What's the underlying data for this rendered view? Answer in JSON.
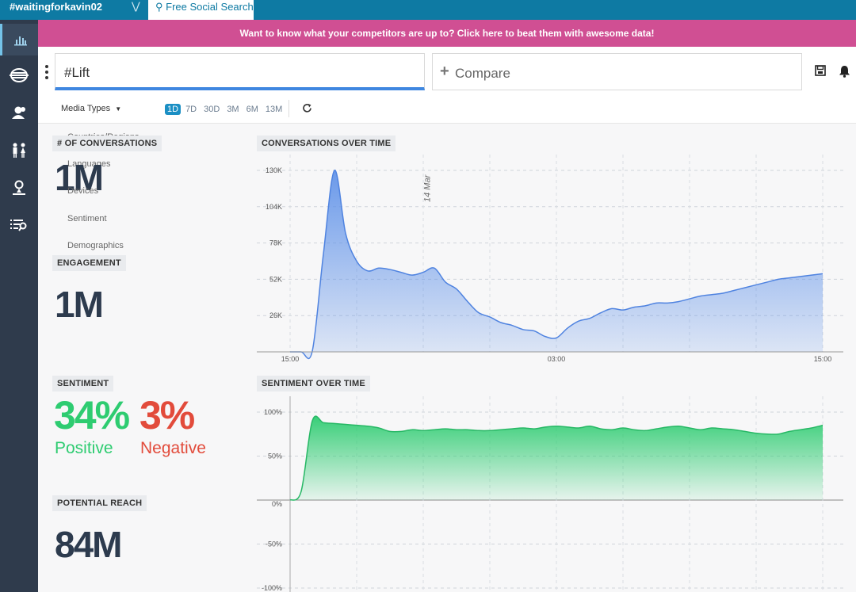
{
  "topbar": {
    "workspace": "#waitingforkavin02",
    "search_tab": "Free Social Search"
  },
  "banner": {
    "text": "Want to know what your competitors are up to? Click here to beat them with awesome data!"
  },
  "query": {
    "value": "#Lift",
    "compare_label": "Compare"
  },
  "filters": {
    "media_types": "Media Types",
    "ranges": [
      "1D",
      "7D",
      "30D",
      "3M",
      "6M",
      "13M"
    ],
    "active_range": "1D"
  },
  "menu": [
    "Countries/Regions",
    "Languages",
    "Devices",
    "Sentiment",
    "Demographics"
  ],
  "metrics": {
    "conversations_label": "# OF CONVERSATIONS",
    "conversations_value": "1M",
    "engagement_label": "ENGAGEMENT",
    "engagement_value": "1M",
    "sentiment_label": "SENTIMENT",
    "positive_value": "34%",
    "positive_label": "Positive",
    "negative_value": "3%",
    "negative_label": "Negative",
    "reach_label": "POTENTIAL REACH",
    "reach_value": "84M"
  },
  "colors": {
    "topbar": "#0e7aa3",
    "banner": "#d04f93",
    "positive": "#2ecc71",
    "negative": "#e24b3b",
    "conversations": "#5b8fe8"
  },
  "chart_data": [
    {
      "type": "area",
      "title": "CONVERSATIONS OVER TIME",
      "x_ticks": [
        "15:00",
        "03:00",
        "15:00"
      ],
      "y_ticks": [
        "26K",
        "52K",
        "78K",
        "104K",
        "130K"
      ],
      "annotation": "14 Mar",
      "ylim": [
        0,
        130000
      ],
      "x": [
        0,
        0.5,
        1,
        1.5,
        2,
        2.5,
        3,
        3.5,
        4,
        4.5,
        5,
        5.5,
        6,
        6.5,
        7,
        7.5,
        8,
        8.5,
        9,
        9.5,
        10,
        10.5,
        11,
        11.5,
        12,
        12.5,
        13,
        13.5,
        14,
        14.5,
        15,
        15.5,
        16,
        16.5,
        17,
        17.5,
        18,
        18.5,
        19,
        19.5,
        20,
        20.5,
        21,
        21.5,
        22,
        22.5,
        23,
        23.5,
        24
      ],
      "values": [
        0,
        0,
        500,
        70000,
        130000,
        85000,
        65000,
        58000,
        60000,
        59000,
        57000,
        55000,
        57000,
        60000,
        50000,
        45000,
        36000,
        28000,
        25000,
        21000,
        19000,
        16000,
        15000,
        11000,
        10000,
        17000,
        22000,
        24000,
        28000,
        31000,
        30000,
        32000,
        33000,
        35000,
        35000,
        36000,
        38000,
        40000,
        41000,
        42000,
        44000,
        46000,
        48000,
        50000,
        52000,
        53000,
        54000,
        55000,
        56000
      ]
    },
    {
      "type": "area",
      "title": "SENTIMENT OVER TIME",
      "y_ticks": [
        "100%",
        "50%",
        "0%",
        "-50%",
        "-100%"
      ],
      "ylim": [
        -100,
        100
      ],
      "x": [
        0,
        0.5,
        1,
        1.5,
        2,
        2.5,
        3,
        3.5,
        4,
        4.5,
        5,
        5.5,
        6,
        6.5,
        7,
        7.5,
        8,
        8.5,
        9,
        9.5,
        10,
        10.5,
        11,
        11.5,
        12,
        12.5,
        13,
        13.5,
        14,
        14.5,
        15,
        15.5,
        16,
        16.5,
        17,
        17.5,
        18,
        18.5,
        19,
        19.5,
        20,
        20.5,
        21,
        21.5,
        22,
        22.5,
        23,
        23.5,
        24
      ],
      "values": [
        0,
        10,
        90,
        88,
        87,
        86,
        85,
        84,
        82,
        78,
        78,
        80,
        79,
        80,
        81,
        80,
        80,
        79,
        79,
        80,
        81,
        82,
        81,
        83,
        84,
        83,
        82,
        84,
        81,
        80,
        82,
        80,
        79,
        81,
        83,
        84,
        82,
        80,
        82,
        81,
        80,
        78,
        76,
        75,
        75,
        78,
        80,
        82,
        85
      ]
    }
  ]
}
